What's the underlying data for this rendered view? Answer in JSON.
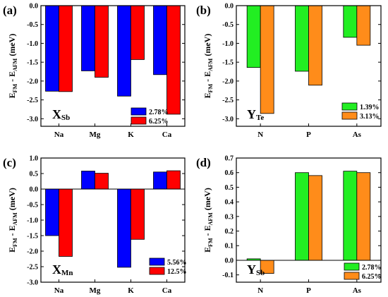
{
  "chart_data": [
    {
      "panel": "(a)",
      "type": "bar",
      "categories": [
        "Na",
        "Mg",
        "K",
        "Ca"
      ],
      "series": [
        {
          "name": "2.78%",
          "color": "#0000ff",
          "values": [
            -2.27,
            -1.73,
            -2.4,
            -1.83
          ]
        },
        {
          "name": "6.25%",
          "color": "#ff0000",
          "values": [
            -2.28,
            -1.9,
            -1.43,
            -2.88
          ]
        }
      ],
      "ylabel": "E_FM - E_AFM (meV)",
      "ylabel_main": "E",
      "ylabel_sub1": "FM",
      "ylabel_mid": " - E",
      "ylabel_sub2": "AFM",
      "ylabel_unit": " (meV)",
      "ylim": [
        -3.2,
        0.0
      ],
      "yticks": [
        "0.0",
        "-0.5",
        "-1.0",
        "-1.5",
        "-2.0",
        "-2.5",
        "-3.0"
      ],
      "ytick_values": [
        0.0,
        -0.5,
        -1.0,
        -1.5,
        -2.0,
        -2.5,
        -3.0
      ],
      "annotation_main": "X",
      "annotation_sub": "Sb",
      "legend_position": "bottom-right"
    },
    {
      "panel": "(b)",
      "type": "bar",
      "categories": [
        "N",
        "P",
        "As"
      ],
      "series": [
        {
          "name": "1.39%",
          "color": "#22ee22",
          "values": [
            -1.64,
            -1.74,
            -0.84
          ]
        },
        {
          "name": "3.13%",
          "color": "#ff8c1a",
          "values": [
            -2.86,
            -2.11,
            -1.05
          ]
        }
      ],
      "ylabel": "E_FM - E_AFM (meV)",
      "ylabel_main": "E",
      "ylabel_sub1": "FM",
      "ylabel_mid": " - E",
      "ylabel_sub2": "AFM",
      "ylabel_unit": " (meV)",
      "ylim": [
        -3.2,
        0.0
      ],
      "yticks": [
        "0.0",
        "-0.5",
        "-1.0",
        "-1.5",
        "-2.0",
        "-2.5",
        "-3.0"
      ],
      "ytick_values": [
        0.0,
        -0.5,
        -1.0,
        -1.5,
        -2.0,
        -2.5,
        -3.0
      ],
      "annotation_main": "Y",
      "annotation_sub": "Te",
      "legend_position": "bottom-right"
    },
    {
      "panel": "(c)",
      "type": "bar",
      "categories": [
        "Na",
        "Mg",
        "K",
        "Ca"
      ],
      "series": [
        {
          "name": "5.56%",
          "color": "#0000ff",
          "values": [
            -1.5,
            0.58,
            -2.52,
            0.55
          ]
        },
        {
          "name": "12.5%",
          "color": "#ff0000",
          "values": [
            -2.17,
            0.51,
            -1.62,
            0.59
          ]
        }
      ],
      "ylabel": "E_FM - E_AFM (meV)",
      "ylabel_main": "E",
      "ylabel_sub1": "FM",
      "ylabel_mid": " - E",
      "ylabel_sub2": "AFM",
      "ylabel_unit": " (meV)",
      "ylim": [
        -3.0,
        1.0
      ],
      "yticks": [
        "1.0",
        "0.5",
        "0.0",
        "-0.5",
        "-1.0",
        "-1.5",
        "-2.0",
        "-2.5",
        "-3.0"
      ],
      "ytick_values": [
        1.0,
        0.5,
        0.0,
        -0.5,
        -1.0,
        -1.5,
        -2.0,
        -2.5,
        -3.0
      ],
      "annotation_main": "X",
      "annotation_sub": "Mn",
      "legend_position": "bottom-right"
    },
    {
      "panel": "(d)",
      "type": "bar",
      "categories": [
        "N",
        "P",
        "As"
      ],
      "series": [
        {
          "name": "2.78%",
          "color": "#22ee22",
          "values": [
            0.01,
            0.6,
            0.61
          ]
        },
        {
          "name": "6.25%",
          "color": "#ff8c1a",
          "values": [
            -0.09,
            0.58,
            0.6
          ]
        }
      ],
      "ylabel": "E_FM - E_AFM (meV)",
      "ylabel_main": "E",
      "ylabel_sub1": "FM",
      "ylabel_mid": " - E",
      "ylabel_sub2": "AFM",
      "ylabel_unit": " (meV)",
      "ylim": [
        -0.15,
        0.7
      ],
      "yticks": [
        "0.7",
        "0.6",
        "0.5",
        "0.4",
        "0.3",
        "0.2",
        "0.1",
        "0.0",
        "-0.1"
      ],
      "ytick_values": [
        0.7,
        0.6,
        0.5,
        0.4,
        0.3,
        0.2,
        0.1,
        0.0,
        -0.1
      ],
      "annotation_main": "Y",
      "annotation_sub": "Sb",
      "legend_position": "bottom-right"
    }
  ]
}
